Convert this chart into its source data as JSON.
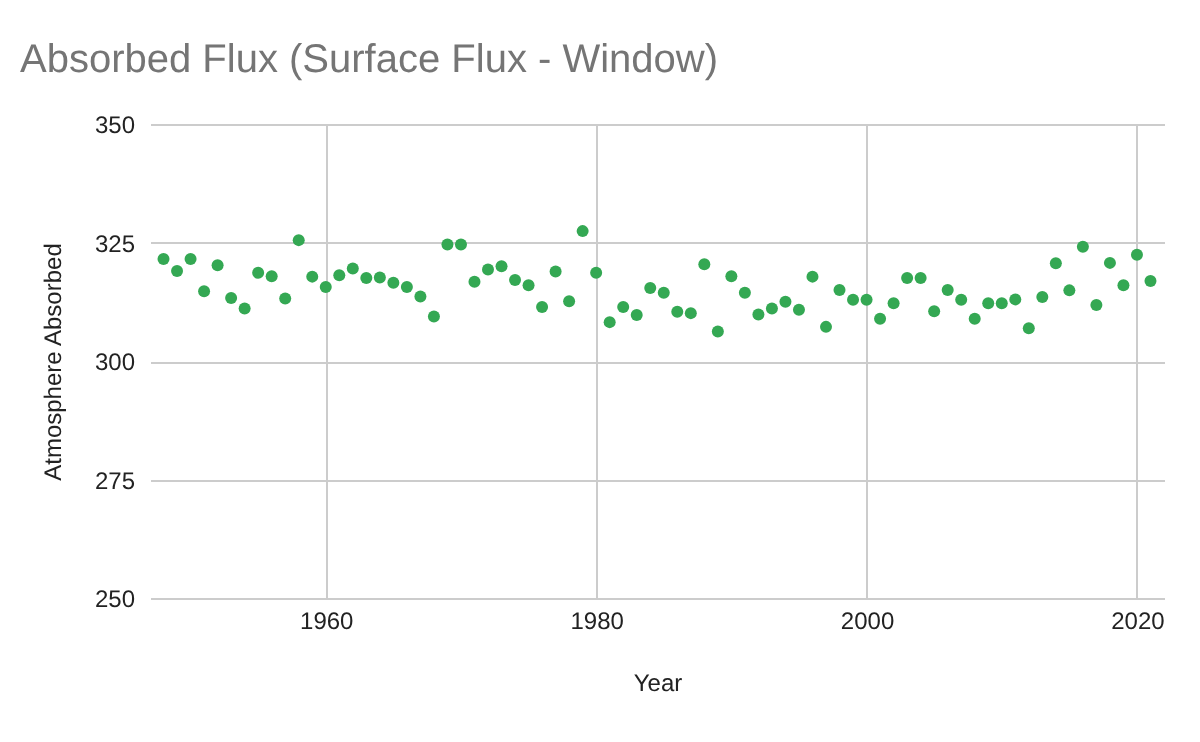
{
  "chart_data": {
    "type": "scatter",
    "title": "Absorbed Flux (Surface Flux - Window)",
    "xlabel": "Year",
    "ylabel": "Atmosphere Absorbed",
    "x": [
      1948,
      1949,
      1950,
      1951,
      1952,
      1953,
      1954,
      1955,
      1956,
      1957,
      1958,
      1959,
      1960,
      1961,
      1962,
      1963,
      1964,
      1965,
      1966,
      1967,
      1968,
      1969,
      1970,
      1971,
      1972,
      1973,
      1974,
      1975,
      1976,
      1977,
      1978,
      1979,
      1980,
      1981,
      1982,
      1983,
      1984,
      1985,
      1986,
      1987,
      1988,
      1989,
      1990,
      1991,
      1992,
      1993,
      1994,
      1995,
      1996,
      1997,
      1998,
      1999,
      2000,
      2001,
      2002,
      2003,
      2004,
      2005,
      2006,
      2007,
      2008,
      2009,
      2010,
      2011,
      2012,
      2013,
      2014,
      2015,
      2016,
      2017,
      2018,
      2019,
      2020,
      2021
    ],
    "series": [
      {
        "color": "#34a853",
        "values": [
          321.5,
          319.0,
          321.5,
          314.7,
          320.2,
          313.3,
          311.1,
          318.6,
          317.9,
          313.2,
          325.5,
          317.8,
          315.6,
          318.1,
          319.5,
          317.5,
          317.6,
          316.5,
          315.6,
          313.6,
          309.4,
          324.6,
          324.6,
          316.7,
          319.3,
          320.0,
          317.1,
          316.0,
          311.4,
          318.9,
          312.6,
          327.4,
          318.6,
          308.2,
          311.4,
          309.7,
          315.4,
          314.4,
          310.4,
          310.1,
          320.4,
          306.2,
          317.9,
          314.4,
          309.8,
          311.1,
          312.5,
          310.8,
          317.8,
          307.2,
          315.0,
          312.9,
          312.9,
          308.9,
          312.2,
          317.5,
          317.5,
          310.5,
          315.0,
          312.9,
          308.9,
          312.2,
          312.2,
          313.0,
          306.9,
          313.5,
          320.6,
          314.9,
          324.1,
          311.8,
          320.7,
          316.0,
          322.4,
          316.9
        ]
      }
    ],
    "xlim": [
      1947,
      2022
    ],
    "xticks": [
      1960,
      1980,
      2000,
      2020
    ],
    "ylim": [
      250,
      350
    ],
    "yticks": [
      250,
      275,
      300,
      325,
      350
    ],
    "grid": true,
    "marker": "circle",
    "legend": false
  }
}
